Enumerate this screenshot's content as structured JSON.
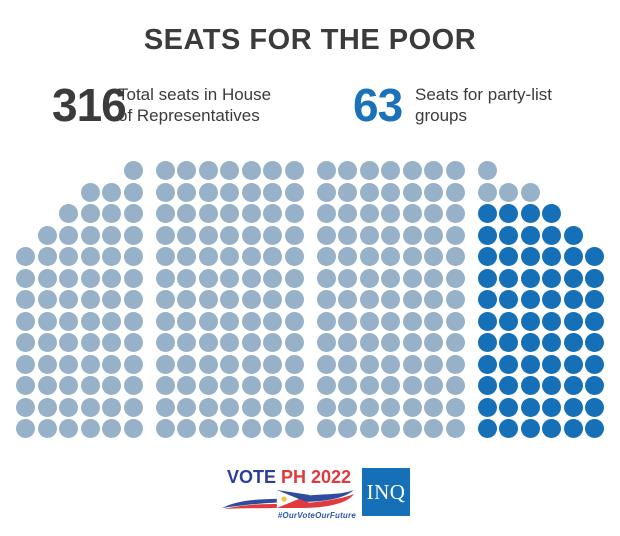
{
  "header": {
    "title": "SEATS FOR THE POOR"
  },
  "stats": [
    {
      "value": "316",
      "label": "Total seats in House\nof Representatives",
      "color": "#3b3b3d"
    },
    {
      "value": "63",
      "label": "Seats for party-list\ngroups",
      "color": "#1a73ba"
    }
  ],
  "chart_data": {
    "type": "parliament-dot-grid",
    "title": "SEATS FOR THE POOR",
    "total_seats": 316,
    "partylist_seats": 63,
    "regular_seats": 253,
    "rows": 13,
    "legend": {
      "regular": "Total seats in House of Representatives",
      "partylist": "Seats for party-list groups"
    },
    "colors": {
      "regular": "#97b2c8",
      "partylist": "#1670b7"
    },
    "blocks": [
      {
        "name": "outer-left",
        "cols": 6,
        "rows": [
          [
            6,
            6,
            "regular"
          ],
          [
            4,
            6,
            "regular"
          ],
          [
            3,
            6,
            "regular"
          ],
          [
            2,
            6,
            "regular"
          ],
          [
            1,
            6,
            "regular"
          ],
          [
            1,
            6,
            "regular"
          ],
          [
            1,
            6,
            "regular"
          ],
          [
            1,
            6,
            "regular"
          ],
          [
            1,
            6,
            "regular"
          ],
          [
            1,
            6,
            "regular"
          ],
          [
            1,
            6,
            "regular"
          ],
          [
            1,
            6,
            "regular"
          ],
          [
            1,
            6,
            "regular"
          ]
        ]
      },
      {
        "name": "center-left",
        "cols": 7,
        "rows": [
          [
            1,
            7,
            "regular"
          ],
          [
            1,
            7,
            "regular"
          ],
          [
            1,
            7,
            "regular"
          ],
          [
            1,
            7,
            "regular"
          ],
          [
            1,
            7,
            "regular"
          ],
          [
            1,
            7,
            "regular"
          ],
          [
            1,
            7,
            "regular"
          ],
          [
            1,
            7,
            "regular"
          ],
          [
            1,
            7,
            "regular"
          ],
          [
            1,
            7,
            "regular"
          ],
          [
            1,
            7,
            "regular"
          ],
          [
            1,
            7,
            "regular"
          ],
          [
            1,
            7,
            "regular"
          ]
        ]
      },
      {
        "name": "center-right",
        "cols": 7,
        "rows": [
          [
            1,
            7,
            "regular"
          ],
          [
            1,
            7,
            "regular"
          ],
          [
            1,
            7,
            "regular"
          ],
          [
            1,
            7,
            "regular"
          ],
          [
            1,
            7,
            "regular"
          ],
          [
            1,
            7,
            "regular"
          ],
          [
            1,
            7,
            "regular"
          ],
          [
            1,
            7,
            "regular"
          ],
          [
            1,
            7,
            "regular"
          ],
          [
            1,
            7,
            "regular"
          ],
          [
            1,
            7,
            "regular"
          ],
          [
            1,
            7,
            "regular"
          ],
          [
            1,
            7,
            "regular"
          ]
        ]
      },
      {
        "name": "outer-right",
        "cols": 6,
        "rows": [
          [
            1,
            1,
            "regular"
          ],
          [
            1,
            3,
            "regular"
          ],
          [
            1,
            4,
            "partylist"
          ],
          [
            1,
            5,
            "partylist"
          ],
          [
            1,
            6,
            "partylist"
          ],
          [
            1,
            6,
            "partylist"
          ],
          [
            1,
            6,
            "partylist"
          ],
          [
            1,
            6,
            "partylist"
          ],
          [
            1,
            6,
            "partylist"
          ],
          [
            1,
            6,
            "partylist"
          ],
          [
            1,
            6,
            "partylist"
          ],
          [
            1,
            6,
            "partylist"
          ],
          [
            1,
            6,
            "partylist"
          ]
        ]
      }
    ]
  },
  "footer": {
    "vote_text_blue": "VOTE",
    "vote_text_red": "PH 2022",
    "hashtag": "#OurVoteOurFuture",
    "inq_label": "INQ",
    "colors": {
      "vote_blue": "#2b3f97",
      "vote_red": "#e23a3c",
      "ribbon_blue": "#2e4da0",
      "ribbon_red": "#e23a3c",
      "sun_yellow": "#f8c23a",
      "inq_bg": "#1670b7"
    }
  }
}
